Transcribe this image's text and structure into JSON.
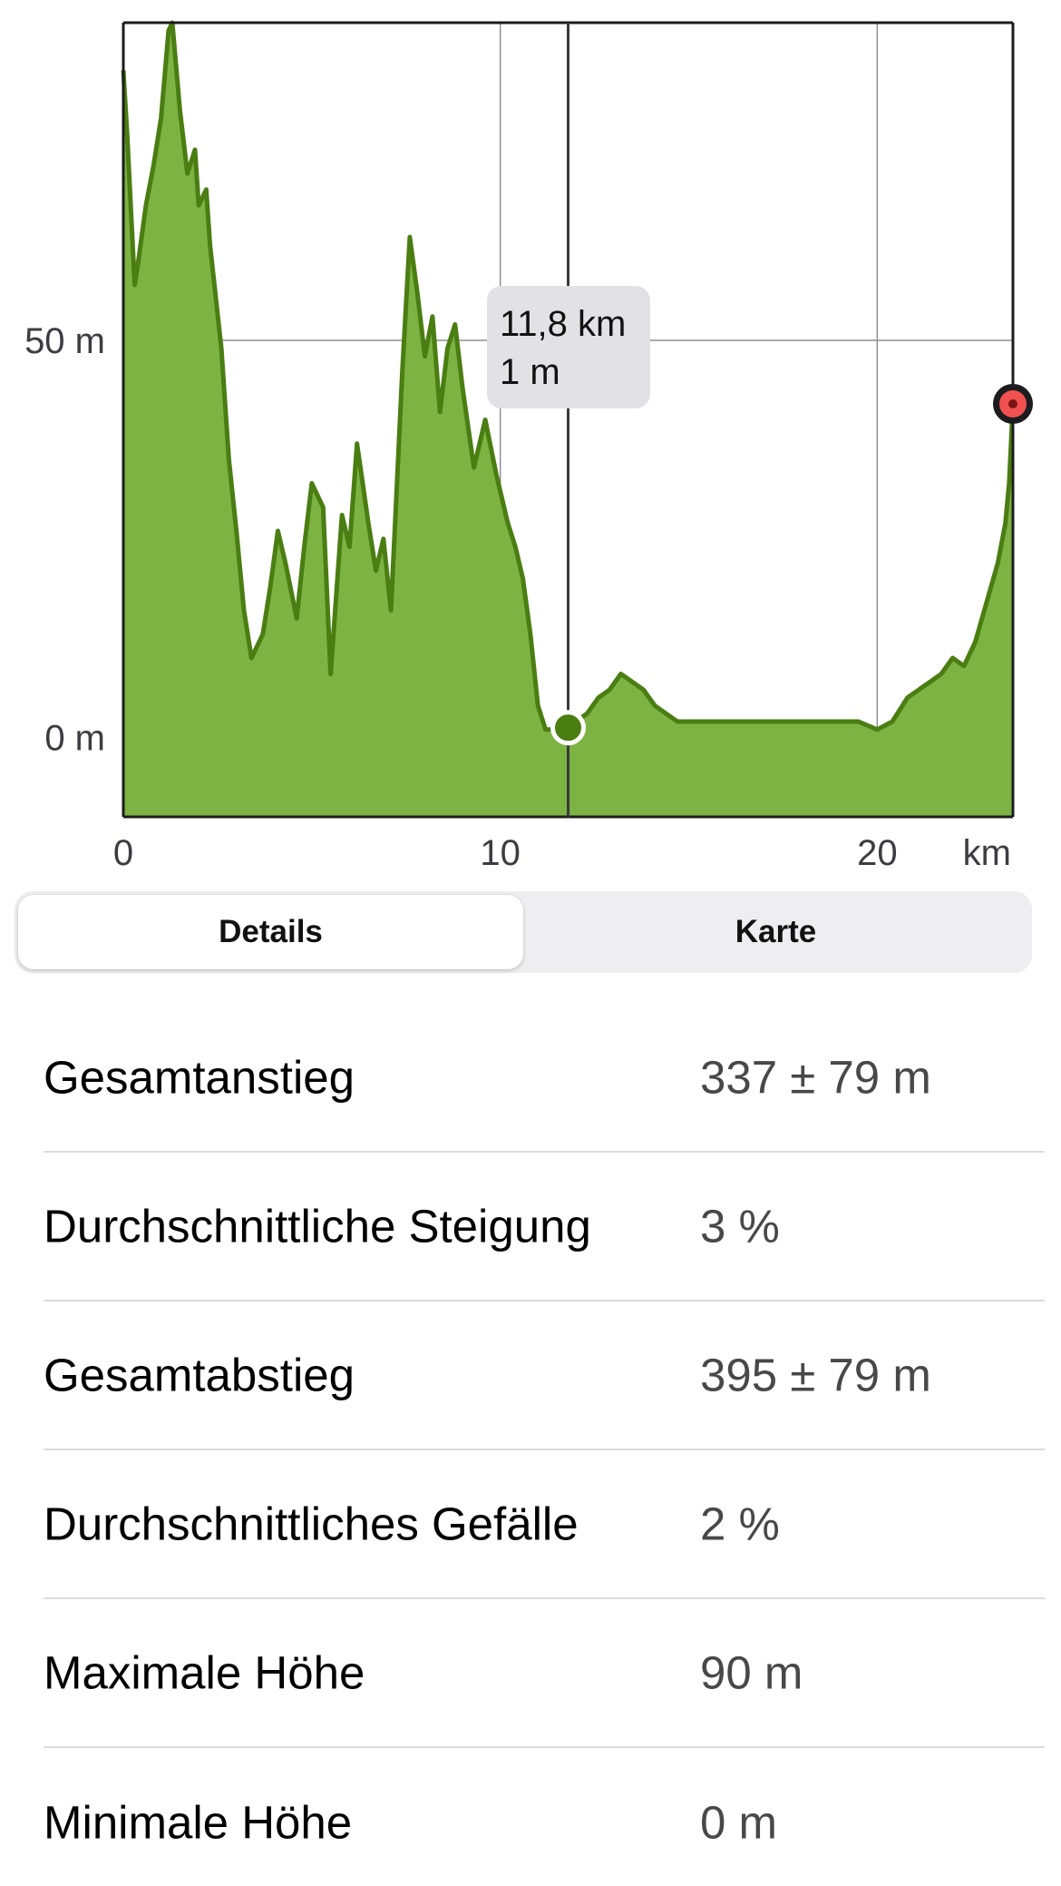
{
  "chart_data": {
    "type": "area",
    "xlabel": "km",
    "ylabel": "",
    "xlim": [
      0,
      23.6
    ],
    "ylim": [
      -10,
      90
    ],
    "x_ticks": [
      0,
      10,
      20
    ],
    "x_tick_labels": [
      "0",
      "10",
      "20"
    ],
    "y_ticks": [
      0,
      50
    ],
    "y_tick_labels": [
      "0 m",
      "50 m"
    ],
    "grid": true,
    "fill_color": "#7cb342",
    "line_color": "#4a7d12",
    "x": [
      0,
      0.1,
      0.3,
      0.4,
      0.6,
      0.8,
      1.0,
      1.2,
      1.3,
      1.5,
      1.7,
      1.9,
      2.0,
      2.2,
      2.3,
      2.6,
      2.8,
      3.0,
      3.2,
      3.4,
      3.7,
      3.9,
      4.1,
      4.3,
      4.6,
      4.8,
      5.0,
      5.3,
      5.5,
      5.8,
      6.0,
      6.2,
      6.5,
      6.7,
      6.9,
      7.1,
      7.4,
      7.6,
      7.8,
      8.0,
      8.2,
      8.4,
      8.6,
      8.8,
      9.0,
      9.3,
      9.6,
      9.9,
      10.2,
      10.4,
      10.6,
      10.8,
      11.0,
      11.2,
      11.4,
      11.6,
      11.8,
      12.0,
      12.3,
      12.6,
      12.9,
      13.2,
      13.5,
      13.8,
      14.1,
      14.4,
      14.7,
      15.0,
      15.3,
      15.7,
      16.2,
      16.7,
      17.2,
      17.8,
      18.4,
      19.0,
      19.5,
      20.0,
      20.4,
      20.8,
      21.1,
      21.4,
      21.7,
      22.0,
      22.3,
      22.6,
      22.9,
      23.2,
      23.4,
      23.5,
      23.6
    ],
    "y": [
      84,
      76,
      57,
      60,
      67,
      72,
      78,
      89,
      90,
      79,
      71,
      74,
      67,
      69,
      62,
      49,
      35,
      26,
      16,
      10,
      13,
      19,
      26,
      22,
      15,
      24,
      32,
      29,
      8,
      28,
      24,
      37,
      27,
      21,
      25,
      16,
      46,
      63,
      56,
      48,
      53,
      41,
      49,
      52,
      44,
      34,
      40,
      33,
      27,
      24,
      20,
      13,
      4,
      1,
      1,
      2,
      1,
      2,
      3,
      5,
      6,
      8,
      7,
      6,
      4,
      3,
      2,
      2,
      2,
      2,
      2,
      2,
      2,
      2,
      2,
      2,
      2,
      1,
      2,
      5,
      6,
      7,
      8,
      10,
      9,
      12,
      17,
      22,
      27,
      32,
      42
    ],
    "cursor": {
      "x": 11.8,
      "y": 1,
      "label_distance": "11,8 km",
      "label_elevation": "1 m"
    },
    "end_marker": {
      "x": 23.6,
      "y": 42,
      "color": "#f0504f"
    }
  },
  "tabs": {
    "details_label": "Details",
    "map_label": "Karte",
    "selected": "Details"
  },
  "stats": [
    {
      "label": "Gesamtanstieg",
      "value": "337 ± 79 m"
    },
    {
      "label": "Durchschnittliche Steigung",
      "value": "3 %"
    },
    {
      "label": "Gesamtabstieg",
      "value": "395 ± 79 m"
    },
    {
      "label": "Durchschnittliches Gefälle",
      "value": "2 %"
    },
    {
      "label": "Maximale Höhe",
      "value": "90 m"
    },
    {
      "label": "Minimale Höhe",
      "value": "0 m"
    }
  ]
}
